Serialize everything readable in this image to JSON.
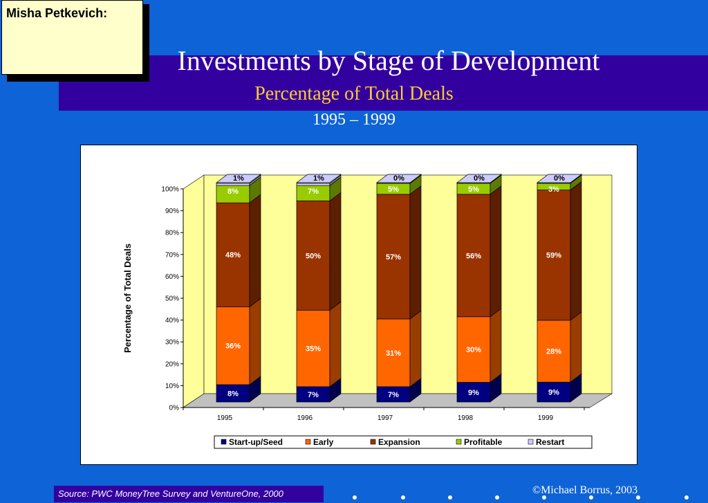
{
  "note": {
    "text": "Misha Petkevich:"
  },
  "slide": {
    "title": "Investments by Stage of Development",
    "subtitle": "Percentage of Total Deals",
    "years": "1995 – 1999",
    "source": "Source: PWC MoneyTree Survey and VentureOne, 2000",
    "copyright": "©Michael Borrus, 2003"
  },
  "colors": {
    "background": "#0e63d6",
    "title_band": "#3300a0",
    "subtitle": "#ffcc33",
    "startup": "#000080",
    "early": "#ff6600",
    "expansion": "#993300",
    "profitable": "#99cc00",
    "restart": "#ccccff",
    "plot_back": "#ffff99",
    "floor": "#c0c0c0"
  },
  "chart_data": {
    "type": "bar",
    "stacked": true,
    "categories": [
      "1995",
      "1996",
      "1997",
      "1998",
      "1999"
    ],
    "ylabel": "Percentage of Total Deals",
    "ylim": [
      0,
      100
    ],
    "yticks": [
      "0%",
      "10%",
      "20%",
      "30%",
      "40%",
      "50%",
      "60%",
      "70%",
      "80%",
      "90%",
      "100%"
    ],
    "legend_position": "bottom",
    "series": [
      {
        "name": "Start-up/Seed",
        "values": [
          8,
          7,
          7,
          9,
          9
        ],
        "labels": [
          "8%",
          "7%",
          "7%",
          "9%",
          "9%"
        ]
      },
      {
        "name": "Early",
        "values": [
          36,
          35,
          31,
          30,
          28
        ],
        "labels": [
          "36%",
          "35%",
          "31%",
          "30%",
          "28%"
        ]
      },
      {
        "name": "Expansion",
        "values": [
          48,
          50,
          57,
          56,
          59
        ],
        "labels": [
          "48%",
          "50%",
          "57%",
          "56%",
          "59%"
        ]
      },
      {
        "name": "Profitable",
        "values": [
          8,
          7,
          5,
          5,
          3
        ],
        "labels": [
          "8%",
          "7%",
          "5%",
          "5%",
          "3%"
        ]
      },
      {
        "name": "Restart",
        "values": [
          1,
          1,
          0,
          0,
          0
        ],
        "labels": [
          "1%",
          "1%",
          "0%",
          "0%",
          "0%"
        ]
      }
    ]
  }
}
